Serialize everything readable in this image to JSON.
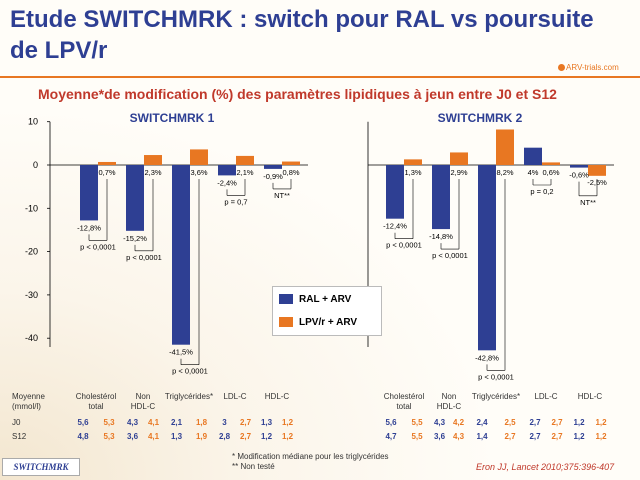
{
  "title": "Etude SWITCHMRK : switch pour RAL vs poursuite de LPV/r",
  "logo": "ARV-trials.com",
  "subtitle": "Moyenne*de modification (%) des paramètres lipidiques à jeun entre J0 et S12",
  "colors": {
    "ral": "#2e3f93",
    "lpv": "#e87722",
    "title": "#2e3f93",
    "subtitle": "#c0392b"
  },
  "legend": {
    "ral": "RAL + ARV",
    "lpv": "LPV/r + ARV"
  },
  "chart_data": [
    {
      "type": "bar",
      "title": "SWITCHMRK 1",
      "ylim": [
        -45,
        10
      ],
      "yticks": [
        10,
        0,
        -10,
        -20,
        -30,
        -40
      ],
      "categories": [
        "Cholestérol total",
        "Non HDL-C",
        "Triglycérides*",
        "LDL-C",
        "HDL-C"
      ],
      "series": [
        {
          "name": "RAL + ARV",
          "values": [
            -12.8,
            -15.2,
            -41.5,
            -2.4,
            -0.9
          ],
          "labels": [
            "-12,8%",
            "-15,2%",
            "-41,5%",
            "-2,4%",
            "-0,9%"
          ]
        },
        {
          "name": "LPV/r + ARV",
          "values": [
            0.7,
            2.3,
            3.6,
            2.1,
            0.8
          ],
          "labels": [
            "0,7%",
            "2,3%",
            "3,6%",
            "2,1%",
            "0,8%"
          ]
        }
      ],
      "pvalues": [
        "p < 0,0001",
        "p < 0,0001",
        "p < 0,0001",
        "p = 0,7",
        "NT**"
      ]
    },
    {
      "type": "bar",
      "title": "SWITCHMRK 2",
      "ylim": [
        -45,
        10
      ],
      "categories": [
        "Cholestérol total",
        "Non HDL-C",
        "Triglycérides*",
        "LDL-C",
        "HDL-C"
      ],
      "series": [
        {
          "name": "RAL + ARV",
          "values": [
            -12.4,
            -14.8,
            -42.8,
            4.0,
            -0.6
          ],
          "labels": [
            "-12,4%",
            "-14,8%",
            "-42,8%",
            "4%",
            "-0,6%"
          ]
        },
        {
          "name": "LPV/r + ARV",
          "values": [
            1.3,
            2.9,
            8.2,
            0.6,
            -2.5
          ],
          "labels": [
            "1,3%",
            "2,9%",
            "8,2%",
            "0,6%",
            "-2,5%"
          ]
        }
      ],
      "pvalues": [
        "p < 0,0001",
        "p < 0,0001",
        "p < 0,0001",
        "p = 0,2",
        "NT**"
      ]
    }
  ],
  "table1": {
    "header": {
      "moyenne": "Moyenne",
      "unit": "(mmol/l)",
      "chol1": "Cholestérol",
      "chol2": "total",
      "nonhdl1": "Non",
      "nonhdl2": "HDL-C",
      "tg": "Triglycérides*",
      "ldl": "LDL-C",
      "hdl": "HDL-C"
    },
    "j0": {
      "label": "J0",
      "v": [
        "5,6",
        "5,3",
        "4,3",
        "4,1",
        "2,1",
        "1,8",
        "3",
        "2,7",
        "1,3",
        "1,2"
      ]
    },
    "s12": {
      "label": "S12",
      "v": [
        "4,8",
        "5,3",
        "3,6",
        "4,1",
        "1,3",
        "1,9",
        "2,8",
        "2,7",
        "1,2",
        "1,2"
      ]
    }
  },
  "table2": {
    "header": {
      "chol1": "Cholestérol",
      "chol2": "total",
      "nonhdl1": "Non",
      "nonhdl2": "HDL-C",
      "tg": "Triglycérides*",
      "ldl": "LDL-C",
      "hdl": "HDL-C"
    },
    "j0": {
      "v": [
        "5,6",
        "5,5",
        "4,3",
        "4,2",
        "2,4",
        "2,5",
        "2,7",
        "2,7",
        "1,2",
        "1,2"
      ]
    },
    "s12": {
      "v": [
        "4,7",
        "5,5",
        "3,6",
        "4,3",
        "1,4",
        "2,7",
        "2,7",
        "2,7",
        "1,2",
        "1,2"
      ]
    }
  },
  "footnote": {
    "line1": "* Modification médiane pour les  triglycérides",
    "line2": "** Non testé"
  },
  "reference": "Eron JJ, Lancet 2010;375:396-407",
  "badge": "SWITCHMRK"
}
